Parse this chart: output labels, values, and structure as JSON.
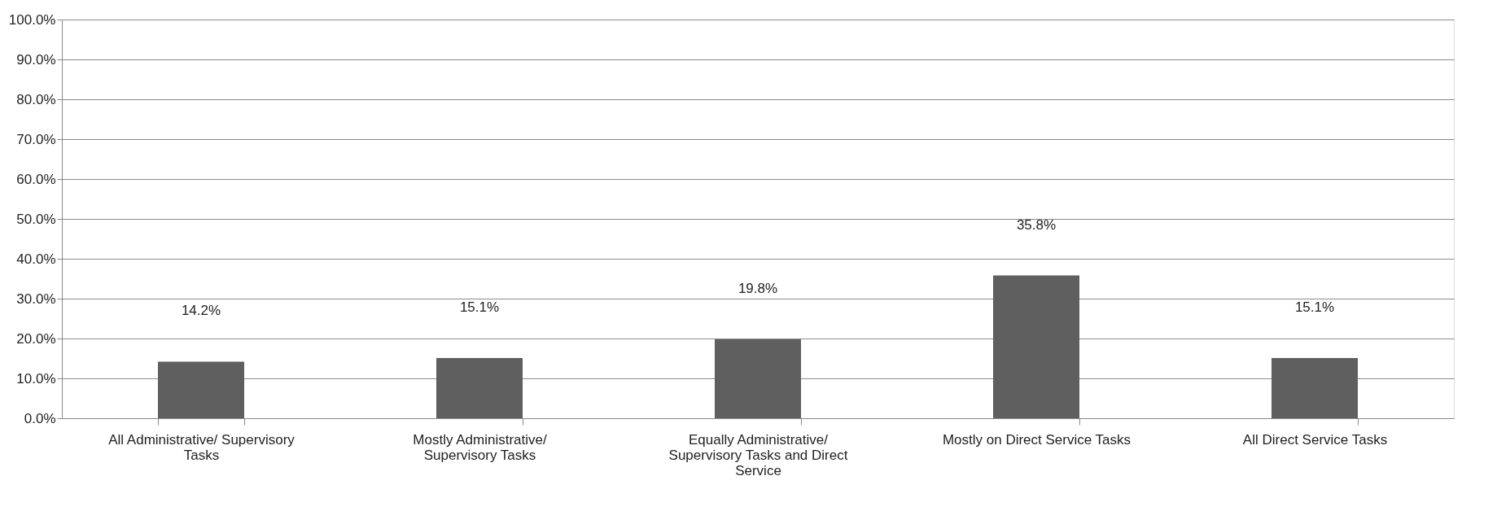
{
  "chart_data": {
    "type": "bar",
    "categories": [
      "All Administrative/ Supervisory Tasks",
      "Mostly Administrative/ Supervisory Tasks",
      "Equally Administrative/ Supervisory Tasks and Direct Service",
      "Mostly on Direct Service Tasks",
      "All Direct Service Tasks"
    ],
    "values": [
      14.2,
      15.1,
      19.8,
      35.8,
      15.1
    ],
    "value_labels": [
      "14.2%",
      "15.1%",
      "19.8%",
      "35.8%",
      "15.1%"
    ],
    "color": "#5f5f5f",
    "ylim": [
      0,
      100
    ],
    "yticks": [
      {
        "value": 0,
        "label": "0.0%"
      },
      {
        "value": 10,
        "label": "10.0%"
      },
      {
        "value": 20,
        "label": "20.0%"
      },
      {
        "value": 30,
        "label": "30.0%"
      },
      {
        "value": 40,
        "label": "40.0%"
      },
      {
        "value": 50,
        "label": "50.0%"
      },
      {
        "value": 60,
        "label": "60.0%"
      },
      {
        "value": 70,
        "label": "70.0%"
      },
      {
        "value": 80,
        "label": "80.0%"
      },
      {
        "value": 90,
        "label": "90.0%"
      },
      {
        "value": 100,
        "label": "100.0%"
      }
    ],
    "grid": "y"
  }
}
